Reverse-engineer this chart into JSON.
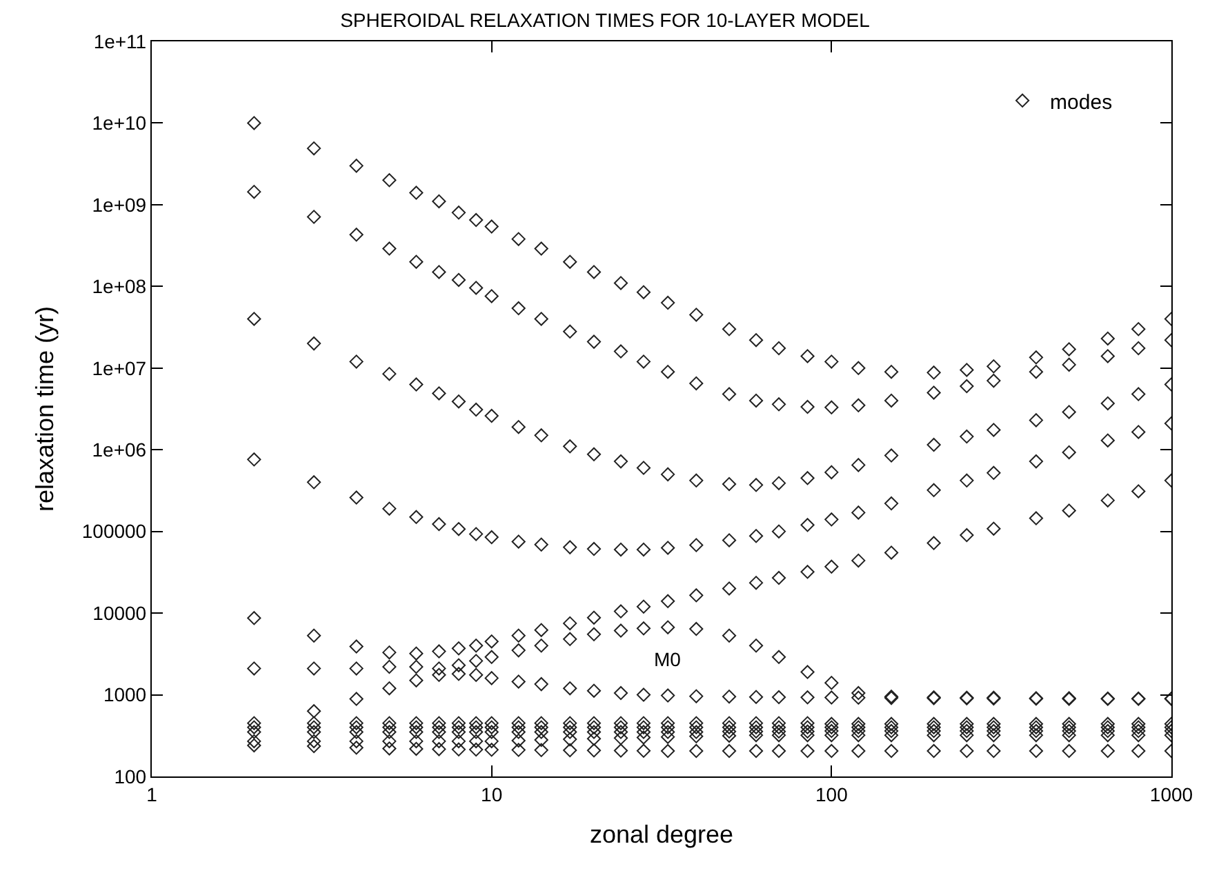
{
  "chart_data": {
    "type": "scatter",
    "title": "SPHEROIDAL RELAXATION TIMES FOR 10-LAYER MODEL",
    "xlabel": "zonal degree",
    "ylabel": "relaxation time (yr)",
    "log": "xy",
    "legend": "top right",
    "marker": "diamond",
    "xlim": [
      1,
      1000
    ],
    "xticks": [
      1,
      10,
      100,
      1000
    ],
    "ylim": [
      100,
      100000000000
    ],
    "yticks": [
      100,
      1000,
      10000,
      100000,
      {
        "value": 1000000,
        "label": "1e+06"
      },
      {
        "value": 10000000,
        "label": "1e+07"
      },
      {
        "value": 100000000,
        "label": "1e+08"
      },
      {
        "value": 1000000000,
        "label": "1e+09"
      },
      {
        "value": 10000000000,
        "label": "1e+10"
      },
      {
        "value": 100000000000,
        "label": "1e+11"
      }
    ],
    "annotations": [
      "M0"
    ],
    "series": [
      {
        "name": "modes",
        "color": "#222222",
        "x": [
          2,
          3,
          4,
          5,
          6,
          7,
          8,
          9,
          10,
          12,
          14,
          17,
          20,
          24,
          28,
          33,
          40,
          50,
          60,
          70,
          85,
          100,
          120,
          150,
          200,
          250,
          300,
          400,
          500,
          650,
          800,
          1000,
          2,
          3,
          4,
          5,
          6,
          7,
          8,
          9,
          10,
          12,
          14,
          17,
          20,
          24,
          28,
          33,
          40,
          50,
          60,
          70,
          85,
          100,
          120,
          150,
          200,
          250,
          300,
          400,
          500,
          650,
          800,
          1000,
          2,
          3,
          4,
          5,
          6,
          7,
          8,
          9,
          10,
          12,
          14,
          17,
          20,
          24,
          28,
          33,
          40,
          50,
          60,
          70,
          85,
          100,
          120,
          150,
          200,
          250,
          300,
          400,
          500,
          650,
          800,
          1000,
          2,
          3,
          4,
          5,
          6,
          7,
          8,
          9,
          10,
          12,
          14,
          17,
          20,
          24,
          28,
          33,
          40,
          50,
          60,
          70,
          85,
          100,
          120,
          150,
          200,
          250,
          300,
          400,
          500,
          650,
          800,
          1000,
          2,
          3,
          4,
          5,
          6,
          7,
          8,
          9,
          10,
          12,
          14,
          17,
          20,
          24,
          28,
          33,
          40,
          50,
          60,
          70,
          85,
          100,
          120,
          150,
          200,
          250,
          300,
          400,
          500,
          650,
          800,
          1000,
          2,
          3,
          4,
          5,
          6,
          7,
          8,
          9,
          10,
          12,
          14,
          17,
          20,
          24,
          28,
          33,
          40,
          50,
          60,
          70,
          85,
          100,
          120,
          150,
          200,
          250,
          300,
          400,
          500,
          650,
          800,
          1000,
          3,
          4,
          5,
          6,
          7,
          8,
          9,
          10,
          12,
          14,
          17,
          20,
          24,
          28,
          33,
          40,
          50,
          60,
          70,
          85,
          100,
          120,
          150,
          200,
          250,
          300,
          400,
          500,
          650,
          800,
          1000,
          2,
          3,
          4,
          5,
          6,
          7,
          8,
          9,
          10,
          12,
          14,
          17,
          20,
          24,
          28,
          33,
          40,
          50,
          60,
          70,
          85,
          100,
          120,
          150,
          200,
          250,
          300,
          400,
          500,
          650,
          800,
          1000,
          2,
          3,
          4,
          5,
          6,
          7,
          8,
          9,
          10,
          12,
          14,
          17,
          20,
          24,
          28,
          33,
          40,
          50,
          60,
          70,
          85,
          100,
          120,
          150,
          200,
          250,
          300,
          400,
          500,
          650,
          800,
          1000,
          2,
          3,
          4,
          5,
          6,
          7,
          8,
          9,
          10,
          12,
          14,
          17,
          20,
          24,
          28,
          33,
          40,
          50,
          60,
          70,
          85,
          100,
          120,
          150,
          200,
          250,
          300,
          400,
          500,
          650,
          800,
          1000,
          2,
          3,
          4,
          5,
          6,
          7,
          8,
          9,
          10,
          12,
          14,
          17,
          20,
          24,
          28,
          33,
          40,
          50,
          60,
          70,
          85,
          100,
          120,
          150,
          200,
          250,
          300,
          400,
          500,
          650,
          800,
          1000,
          2,
          3,
          4,
          5,
          6,
          7,
          8,
          9,
          10,
          12,
          14,
          17,
          20,
          24,
          28,
          33,
          40,
          50,
          60,
          70,
          85,
          100,
          120,
          150,
          200,
          250,
          300,
          400,
          500,
          650,
          800,
          1000
        ],
        "values": [
          10000000000.0,
          4900000000.0,
          3000000000.0,
          2000000000.0,
          1400000000.0,
          1100000000.0,
          800000000.0,
          650000000.0,
          540000000.0,
          380000000.0,
          290000000.0,
          200000000.0,
          150000000.0,
          110000000.0,
          85000000.0,
          63000000.0,
          45000000.0,
          30000000.0,
          22000000.0,
          17500000.0,
          14000000.0,
          12000000.0,
          10000000.0,
          9000000.0,
          8800000.0,
          9500000.0,
          10500000.0,
          13500000.0,
          17000000.0,
          23000000.0,
          30000000.0,
          40000000.0,
          1440000000.0,
          710000000.0,
          430000000.0,
          290000000.0,
          200000000.0,
          150000000.0,
          120000000.0,
          96000000.0,
          76000000.0,
          54000000.0,
          40000000.0,
          28000000.0,
          21000000.0,
          16000000.0,
          12000000.0,
          9000000.0,
          6500000.0,
          4800000.0,
          4000000.0,
          3600000.0,
          3350000.0,
          3300000.0,
          3500000.0,
          4000000.0,
          5000000.0,
          6000000.0,
          7000000.0,
          9000000.0,
          11000000.0,
          14000000.0,
          17500000.0,
          22000000.0,
          40000000.0,
          20000000.0,
          12000000.0,
          8500000.0,
          6300000.0,
          4900000.0,
          3900000.0,
          3100000.0,
          2600000.0,
          1900000.0,
          1500000.0,
          1100000.0,
          880000.0,
          720000.0,
          600000.0,
          500000.0,
          420000.0,
          380000.0,
          370000.0,
          390000.0,
          450000.0,
          530000.0,
          650000.0,
          850000.0,
          1150000.0,
          1450000.0,
          1750000.0,
          2300000.0,
          2900000.0,
          3700000.0,
          4800000.0,
          6300000.0,
          760000.0,
          400000.0,
          260000.0,
          190000.0,
          150000.0,
          123000.0,
          107000.0,
          93000.0,
          85000.0,
          75000.0,
          69000.0,
          64000.0,
          61000.0,
          60000.0,
          60000.0,
          63000.0,
          68000.0,
          78000.0,
          88000.0,
          100000.0,
          120000.0,
          140000.0,
          170000.0,
          220000.0,
          320000.0,
          420000.0,
          520000.0,
          720000.0,
          930000.0,
          1300000.0,
          1650000.0,
          2100000.0,
          8700,
          5300,
          3900,
          3300,
          3200,
          3400,
          3700,
          4000,
          4500,
          5300,
          6200,
          7500,
          8800,
          10500,
          12000,
          14000,
          16500,
          20000,
          23500,
          27000,
          32000,
          37000,
          44000,
          55000,
          72000,
          90000,
          108000,
          145000,
          180000,
          240000,
          310000,
          420000,
          2100,
          2100,
          2100,
          2200,
          2200,
          2100,
          2300,
          2600,
          2900,
          3500,
          4000,
          4800,
          5500,
          6100,
          6500,
          6700,
          6400,
          5300,
          4000,
          2900,
          1900,
          1400,
          1050,
          950,
          930,
          920,
          920,
          910,
          910,
          900,
          900,
          900,
          630,
          890,
          1200,
          1500,
          1750,
          1800,
          1750,
          1600,
          1450,
          1350,
          1200,
          1120,
          1050,
          1000,
          980,
          960,
          950,
          940,
          935,
          930,
          925,
          920,
          915,
          910,
          905,
          900,
          895,
          890,
          890,
          890,
          890,
          450,
          450,
          450,
          450,
          450,
          450,
          450,
          450,
          450,
          450,
          450,
          450,
          450,
          450,
          450,
          450,
          450,
          450,
          450,
          450,
          450,
          440,
          440,
          440,
          440,
          440,
          440,
          440,
          440,
          440,
          440,
          440,
          400,
          400,
          400,
          400,
          400,
          400,
          400,
          400,
          400,
          400,
          400,
          400,
          400,
          400,
          400,
          400,
          400,
          400,
          400,
          400,
          400,
          400,
          400,
          400,
          400,
          400,
          400,
          400,
          400,
          400,
          400,
          400,
          350,
          350,
          350,
          350,
          350,
          350,
          350,
          350,
          350,
          350,
          350,
          350,
          350,
          350,
          350,
          350,
          350,
          355,
          355,
          355,
          355,
          360,
          360,
          360,
          360,
          360,
          360,
          360,
          360,
          360,
          360,
          360,
          270,
          270,
          270,
          270,
          270,
          270,
          270,
          270,
          270,
          275,
          280,
          285,
          290,
          295,
          300,
          305,
          310,
          315,
          320,
          320,
          320,
          320,
          320,
          320,
          320,
          320,
          320,
          320,
          320,
          320,
          320,
          320,
          240,
          235,
          225,
          220,
          218,
          216,
          214,
          213,
          212,
          211,
          210,
          209,
          208,
          207,
          206,
          205,
          205,
          205,
          205,
          205,
          205,
          205,
          205,
          205,
          205,
          205,
          205,
          205,
          205,
          205,
          205,
          205
        ]
      }
    ]
  }
}
